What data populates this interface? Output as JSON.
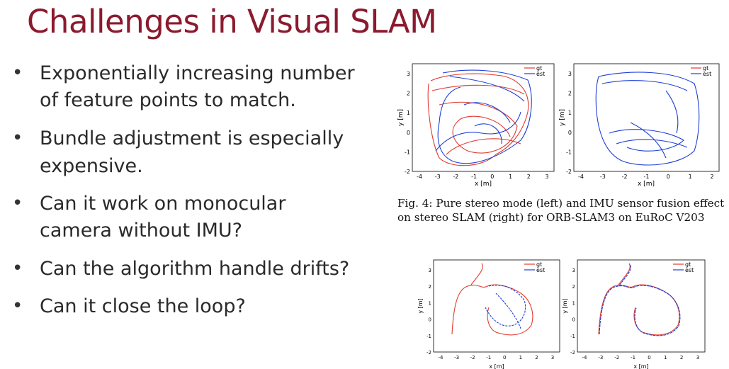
{
  "slide": {
    "title": "Challenges in Visual SLAM",
    "bullets": [
      [
        "Exponentially increasing number",
        "of feature points to match."
      ],
      [
        "Bundle adjustment is especially",
        "expensive."
      ],
      [
        "Can it work on monocular",
        "camera without IMU?"
      ],
      [
        "Can the algorithm handle drifts?"
      ],
      [
        "Can it close the loop?"
      ]
    ],
    "bullet_symbol": "•"
  },
  "figures": {
    "caption_lines": [
      "Fig. 4: Pure stereo mode (left) and IMU sensor fusion effect",
      "on stereo SLAM (right) for ORB-SLAM3 on EuRoC V203"
    ],
    "legend": [
      "gt",
      "est"
    ],
    "xlabel": "x [m]",
    "ylabel": "y [m]",
    "colors": {
      "gt": "#e03c31",
      "est": "#1f3fd6",
      "title": "#8c1a2e"
    },
    "plots": [
      {
        "name": "top-left",
        "xticks": [
          "-4",
          "-3",
          "-2",
          "-1",
          "0",
          "1",
          "2",
          "3"
        ],
        "yticks": [
          "3",
          "2",
          "1",
          "0",
          "-1",
          "-2"
        ]
      },
      {
        "name": "top-right",
        "xticks": [
          "-4",
          "-3",
          "-2",
          "-1",
          "0",
          "1",
          "2"
        ],
        "yticks": [
          "3",
          "2",
          "1",
          "0",
          "-1",
          "-2"
        ]
      },
      {
        "name": "bottom-left",
        "xticks": [
          "-4",
          "-3",
          "-2",
          "-1",
          "0",
          "1",
          "2",
          "3"
        ],
        "yticks": [
          "3",
          "2",
          "1",
          "0",
          "-1",
          "-2"
        ]
      },
      {
        "name": "bottom-right",
        "xticks": [
          "-4",
          "-3",
          "-2",
          "-1",
          "0",
          "1",
          "2",
          "3"
        ],
        "yticks": [
          "3",
          "2",
          "1",
          "0",
          "-1",
          "-2"
        ]
      }
    ]
  }
}
